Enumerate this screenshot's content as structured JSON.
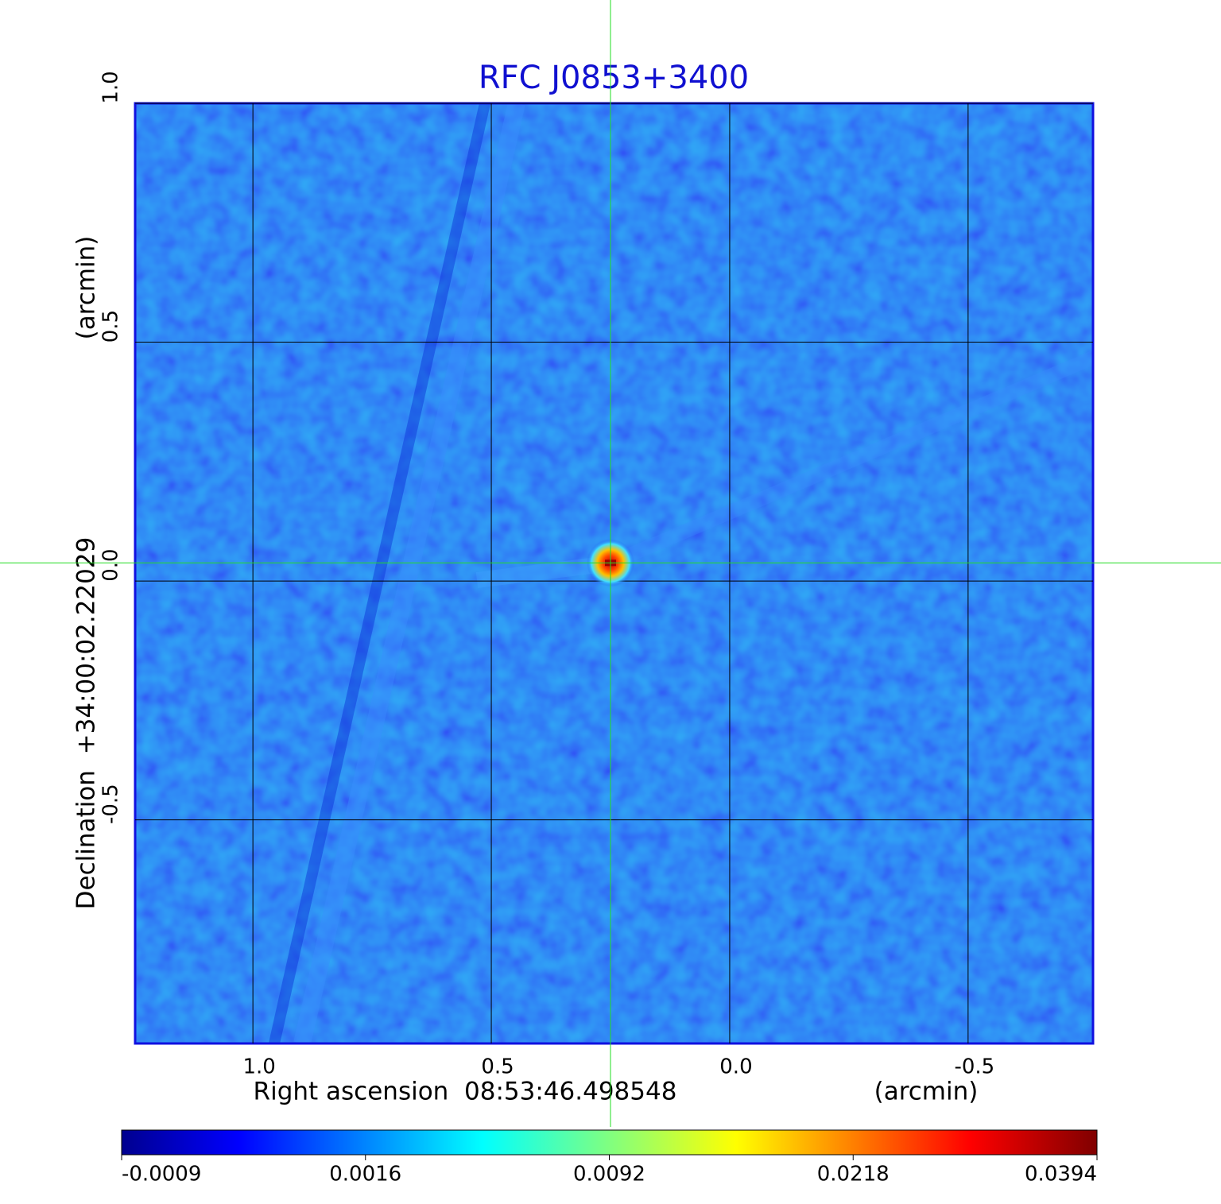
{
  "chart_data": {
    "type": "image",
    "title": "RFC J0853+3400",
    "xlabel": "Right ascension  08:53:46.498548",
    "xunit": "(arcmin)",
    "ylabel": "Declination  +34:00:02.22029",
    "yunit": "(arcmin)",
    "xlim": [
      1.247,
      -0.762
    ],
    "ylim": [
      -0.968,
      1.0
    ],
    "xticks": [
      {
        "value": 1,
        "label": "1.0"
      },
      0.5,
      {
        "value": 0,
        "label": "0.0"
      },
      -0.5
    ],
    "yticks": [
      {
        "value": 1,
        "label": "1.0"
      },
      0.5,
      {
        "value": 0,
        "label": "0.0"
      },
      -0.5
    ],
    "grid": true,
    "crosshair": {
      "x": 0.25,
      "y": 0.038
    },
    "colorbar": {
      "colormap": "jet",
      "ticks": [
        -0.0009,
        0.0016,
        0.0092,
        0.0218,
        0.0394
      ]
    }
  }
}
